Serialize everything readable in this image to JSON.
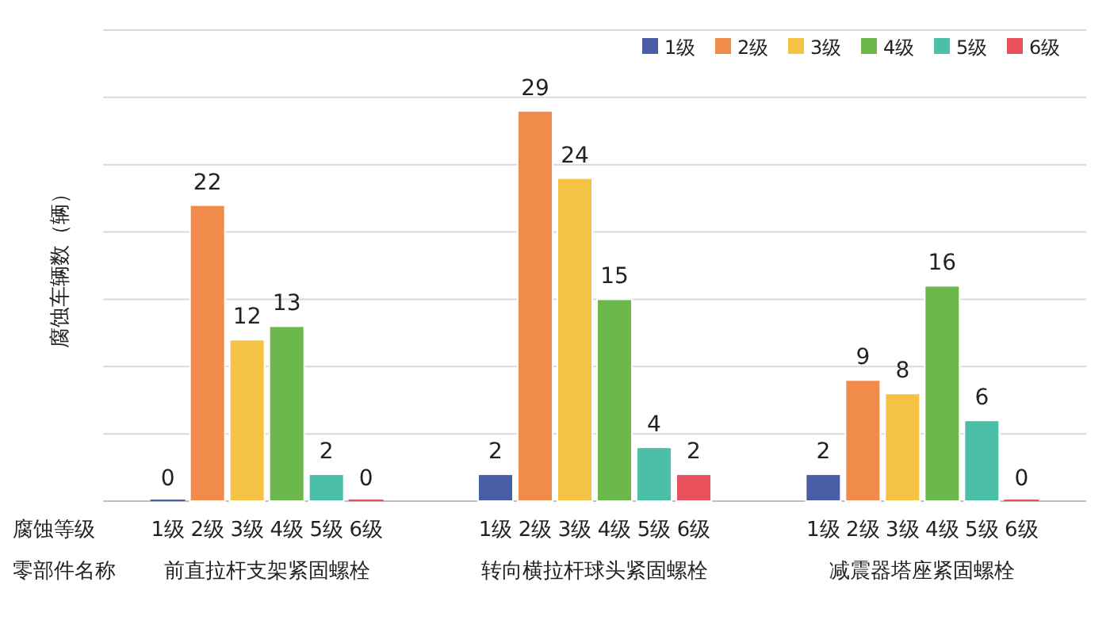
{
  "chart_data": {
    "type": "bar",
    "ylabel": "腐蚀车辆数（辆）",
    "categories": [
      "前直拉杆支架紧固螺栓",
      "转向横拉杆球头紧固螺栓",
      "减震器塔座紧固螺栓"
    ],
    "series": [
      {
        "name": "1级",
        "color": "#4a5ea8",
        "values": [
          0,
          2,
          2
        ]
      },
      {
        "name": "2级",
        "color": "#f08b4c",
        "values": [
          22,
          29,
          9
        ]
      },
      {
        "name": "3级",
        "color": "#f4c244",
        "values": [
          12,
          24,
          8
        ]
      },
      {
        "name": "4级",
        "color": "#6cb84c",
        "values": [
          13,
          15,
          16
        ]
      },
      {
        "name": "5级",
        "color": "#4cbfa9",
        "values": [
          2,
          4,
          6
        ]
      },
      {
        "name": "6级",
        "color": "#e8505c",
        "values": [
          0,
          2,
          0
        ]
      }
    ],
    "ylim": [
      0,
      35
    ],
    "yticks": [
      {
        "value": 0,
        "label": null
      },
      {
        "value": 5,
        "label": null
      },
      {
        "value": 10,
        "label": null
      },
      {
        "value": 15,
        "label": null
      },
      {
        "value": 20,
        "label": null
      },
      {
        "value": 25,
        "label": null
      },
      {
        "value": 30,
        "label": null
      },
      {
        "value": 35,
        "label": null
      }
    ],
    "grid": "y",
    "legend": "top right",
    "data_labels": true,
    "tick_labels": "x",
    "annotations": [
      "腐蚀等级",
      "零部件名称"
    ]
  }
}
